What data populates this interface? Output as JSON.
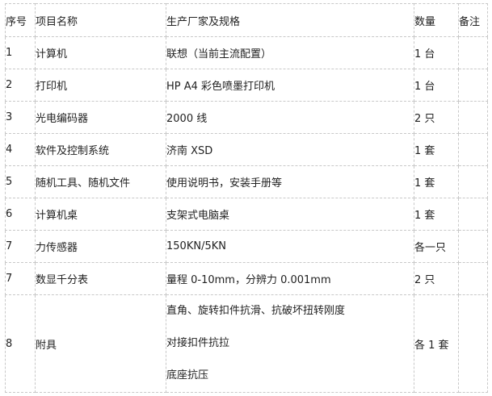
{
  "headers": [
    "序号",
    "项目名称",
    "生产厂家及规格",
    "数量",
    "备注"
  ],
  "rows": [
    {
      "no": "1",
      "name": "计算机",
      "spec": "联想（当前主流配置）",
      "qty": "1 台",
      "note": ""
    },
    {
      "no": "2",
      "name": "打印机",
      "spec": "HP A4 彩色喷墨打印机",
      "qty": "1 台",
      "note": ""
    },
    {
      "no": "3",
      "name": "光电编码器",
      "spec": "2000 线",
      "qty": "2 只",
      "note": ""
    },
    {
      "no": "4",
      "name": "软件及控制系统",
      "spec": "济南 XSD",
      "qty": "1 套",
      "note": ""
    },
    {
      "no": "5",
      "name": "随机工具、随机文件",
      "spec": "使用说明书，安装手册等",
      "qty": "1 套",
      "note": ""
    },
    {
      "no": "6",
      "name": "计算机桌",
      "spec": "支架式电脑桌",
      "qty": "1 套",
      "note": ""
    },
    {
      "no": "7",
      "name": "力传感器",
      "spec": "150KN/5KN",
      "qty": "各一只",
      "note": ""
    },
    {
      "no": "7",
      "name": "数显千分表",
      "spec": "量程 0-10mm，分辨力 0.001mm",
      "qty": "2 只",
      "note": ""
    }
  ],
  "last_row": {
    "no": "8",
    "name": "附具",
    "spec_lines": [
      "直角、旋转扣件抗滑、抗破坏扭转刚度",
      "对接扣件抗拉",
      "底座抗压"
    ],
    "qty": "各 1 套",
    "note": ""
  }
}
